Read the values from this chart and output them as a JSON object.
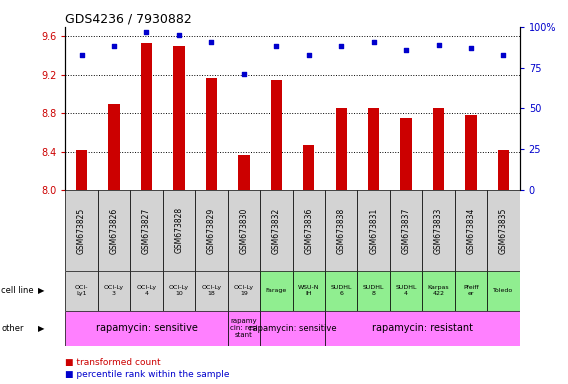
{
  "title": "GDS4236 / 7930882",
  "samples": [
    "GSM673825",
    "GSM673826",
    "GSM673827",
    "GSM673828",
    "GSM673829",
    "GSM673830",
    "GSM673832",
    "GSM673836",
    "GSM673838",
    "GSM673831",
    "GSM673837",
    "GSM673833",
    "GSM673834",
    "GSM673835"
  ],
  "bar_values": [
    8.42,
    8.9,
    9.53,
    9.5,
    9.17,
    8.37,
    9.15,
    8.47,
    8.85,
    8.85,
    8.75,
    8.85,
    8.78,
    8.42
  ],
  "dot_values": [
    83,
    88,
    97,
    95,
    91,
    71,
    88,
    83,
    88,
    91,
    86,
    89,
    87,
    83
  ],
  "cell_line_labels": [
    "OCI-\nLy1",
    "OCI-Ly\n3",
    "OCI-Ly\n4",
    "OCI-Ly\n10",
    "OCI-Ly\n18",
    "OCI-Ly\n19",
    "Farage",
    "WSU-N\nIH",
    "SUDHL\n6",
    "SUDHL\n8",
    "SUDHL\n4",
    "Karpas\n422",
    "Pfeiff\ner",
    "Toledo"
  ],
  "cell_line_bg": [
    "#d3d3d3",
    "#d3d3d3",
    "#d3d3d3",
    "#d3d3d3",
    "#d3d3d3",
    "#d3d3d3",
    "#90ee90",
    "#90ee90",
    "#90ee90",
    "#90ee90",
    "#90ee90",
    "#90ee90",
    "#90ee90",
    "#90ee90"
  ],
  "other_groups": [
    {
      "label": "rapamycin: sensitive",
      "start": 0,
      "end": 5,
      "color": "#ff80ff",
      "fontsize": 7
    },
    {
      "label": "rapamy\ncin: resi\nstant",
      "start": 5,
      "end": 6,
      "color": "#ff80ff",
      "fontsize": 5
    },
    {
      "label": "rapamycin: sensitive",
      "start": 6,
      "end": 8,
      "color": "#ff80ff",
      "fontsize": 6
    },
    {
      "label": "rapamycin: resistant",
      "start": 8,
      "end": 14,
      "color": "#ff80ff",
      "fontsize": 7
    }
  ],
  "ylim": [
    8.0,
    9.7
  ],
  "yticks": [
    8.0,
    8.4,
    8.8,
    9.2,
    9.6
  ],
  "y2lim": [
    0,
    100
  ],
  "y2ticks": [
    0,
    25,
    50,
    75,
    100
  ],
  "bar_color": "#cc0000",
  "dot_color": "#0000cc",
  "legend_bar_label": "transformed count",
  "legend_dot_label": "percentile rank within the sample",
  "bar_width": 0.35
}
